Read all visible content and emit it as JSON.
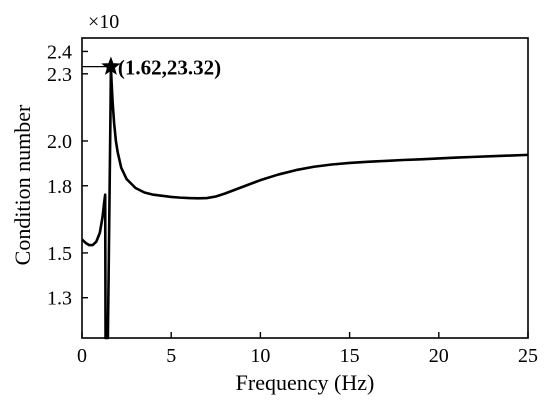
{
  "chart_data": {
    "type": "line",
    "xlabel": "Frequency (Hz)",
    "ylabel": "Condition number",
    "y_multiplier": "×10",
    "xlim": [
      0,
      25
    ],
    "ylim": [
      1.12,
      2.46
    ],
    "x_ticks": [
      0,
      5,
      10,
      15,
      20,
      25
    ],
    "y_ticks": [
      1.3,
      1.5,
      1.8,
      2.0,
      2.3,
      2.4
    ],
    "y_tick_labels": [
      "1.3",
      "1.5",
      "1.8",
      "2.0",
      "2.3",
      "2.4"
    ],
    "grid": false,
    "legend": "none",
    "annotation": {
      "label": "(1.62,23.32)",
      "x": 1.62,
      "y": 2.332,
      "marker": "star"
    },
    "series": [
      {
        "color": "#000000",
        "x": [
          0.0,
          0.2,
          0.4,
          0.6,
          0.8,
          1.0,
          1.15,
          1.25,
          1.3,
          1.32,
          1.35,
          1.4,
          1.45,
          1.5,
          1.55,
          1.6,
          1.62,
          1.66,
          1.72,
          1.8,
          1.9,
          2.0,
          2.2,
          2.5,
          3.0,
          3.5,
          4.0,
          4.5,
          5.0,
          5.5,
          6.0,
          6.5,
          7.0,
          7.5,
          8.0,
          8.5,
          9.0,
          9.5,
          10.0,
          11.0,
          12.0,
          13.0,
          14.0,
          15.0,
          16.0,
          17.0,
          18.0,
          19.0,
          20.0,
          21.0,
          22.0,
          23.0,
          24.0,
          25.0
        ],
        "values": [
          1.56,
          1.545,
          1.535,
          1.535,
          1.55,
          1.59,
          1.66,
          1.73,
          1.76,
          1.12,
          1.12,
          1.12,
          1.12,
          1.45,
          1.8,
          2.15,
          2.332,
          2.26,
          2.17,
          2.08,
          2.0,
          1.95,
          1.88,
          1.83,
          1.79,
          1.77,
          1.76,
          1.755,
          1.75,
          1.747,
          1.745,
          1.744,
          1.745,
          1.752,
          1.765,
          1.78,
          1.795,
          1.81,
          1.825,
          1.85,
          1.87,
          1.885,
          1.895,
          1.902,
          1.907,
          1.911,
          1.915,
          1.918,
          1.922,
          1.926,
          1.929,
          1.932,
          1.935,
          1.938
        ]
      }
    ]
  }
}
